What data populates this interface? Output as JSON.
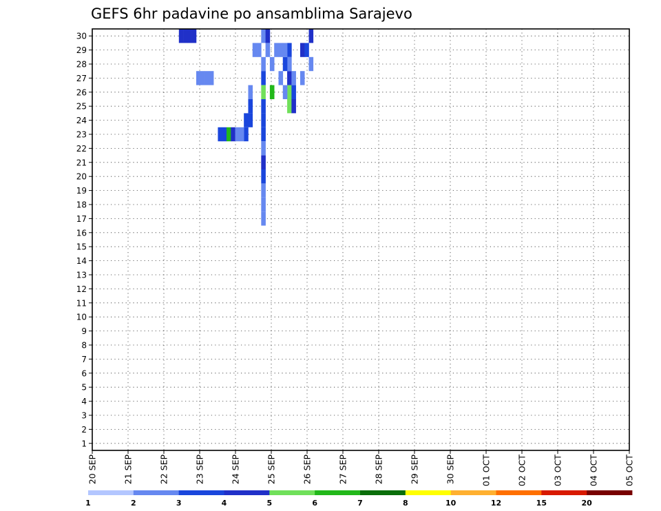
{
  "chart_data": {
    "type": "heatmap",
    "title": "GEFS 6hr padavine po ansamblima Sarajevo",
    "xlabel": "",
    "ylabel": "",
    "x_start_date": "20 SEP",
    "x_steps": 124,
    "x_step_hours": 6,
    "y_labels": [
      "1",
      "2",
      "3",
      "4",
      "5",
      "6",
      "7",
      "8",
      "9",
      "10",
      "11",
      "12",
      "13",
      "14",
      "15",
      "16",
      "17",
      "18",
      "19",
      "20",
      "21",
      "22",
      "23",
      "24",
      "25",
      "26",
      "27",
      "28",
      "29",
      "30"
    ],
    "x_tick_labels": [
      "20 SEP",
      "21 SEP",
      "22 SEP",
      "23 SEP",
      "24 SEP",
      "25 SEP",
      "26 SEP",
      "27 SEP",
      "28 SEP",
      "29 SEP",
      "30 SEP",
      "01 OCT",
      "02 OCT",
      "03 OCT",
      "04 OCT",
      "05 OCT"
    ],
    "legend": {
      "levels": [
        "1",
        "2",
        "3",
        "4",
        "5",
        "6",
        "7",
        "8",
        "10",
        "12",
        "15",
        "20"
      ],
      "colors": [
        "#b3c6ff",
        "#6688f0",
        "#1a46dc",
        "#2030c8",
        "#70e05a",
        "#22b81a",
        "#0a6e0a",
        "#ffff00",
        "#ffb030",
        "#ff7000",
        "#d81a00",
        "#780000"
      ]
    },
    "cells": [
      [
        39,
        30,
        1
      ],
      [
        39,
        28,
        1
      ],
      [
        39,
        27,
        2
      ],
      [
        39,
        26,
        4
      ],
      [
        39,
        25,
        2
      ],
      [
        39,
        24,
        2
      ],
      [
        39,
        23,
        2
      ],
      [
        39,
        22,
        1
      ],
      [
        39,
        21,
        3
      ],
      [
        39,
        20,
        2
      ],
      [
        39,
        19,
        1
      ],
      [
        39,
        18,
        1
      ],
      [
        39,
        17,
        1
      ],
      [
        40,
        30,
        3
      ],
      [
        40,
        29,
        1
      ],
      [
        45,
        25,
        4
      ],
      [
        45,
        26,
        4
      ],
      [
        45,
        27,
        3
      ],
      [
        45,
        28,
        1
      ],
      [
        45,
        29,
        2
      ],
      [
        46,
        25,
        3
      ],
      [
        46,
        26,
        2
      ],
      [
        46,
        27,
        1
      ],
      [
        44,
        26,
        1
      ],
      [
        44,
        28,
        2
      ],
      [
        44,
        29,
        1
      ],
      [
        43,
        27,
        1
      ],
      [
        43,
        29,
        1
      ],
      [
        42,
        29,
        1
      ],
      [
        41,
        26,
        5
      ],
      [
        41,
        28,
        1
      ],
      [
        37,
        29,
        1
      ],
      [
        38,
        29,
        1
      ],
      [
        36,
        24,
        2
      ],
      [
        36,
        25,
        2
      ],
      [
        36,
        26,
        1
      ],
      [
        35,
        23,
        2
      ],
      [
        35,
        24,
        2
      ],
      [
        48,
        29,
        3
      ],
      [
        49,
        29,
        2
      ],
      [
        50,
        28,
        1
      ],
      [
        50,
        30,
        3
      ],
      [
        48,
        27,
        1
      ],
      [
        29,
        23,
        2
      ],
      [
        30,
        23,
        2
      ],
      [
        31,
        23,
        5
      ],
      [
        32,
        23,
        3
      ],
      [
        33,
        23,
        1
      ],
      [
        34,
        23,
        1
      ],
      [
        23,
        30,
        3
      ],
      [
        22,
        30,
        3
      ],
      [
        21,
        30,
        3
      ],
      [
        20,
        30,
        3
      ],
      [
        24,
        27,
        1
      ],
      [
        25,
        27,
        1
      ],
      [
        26,
        27,
        1
      ],
      [
        27,
        27,
        1
      ]
    ]
  }
}
